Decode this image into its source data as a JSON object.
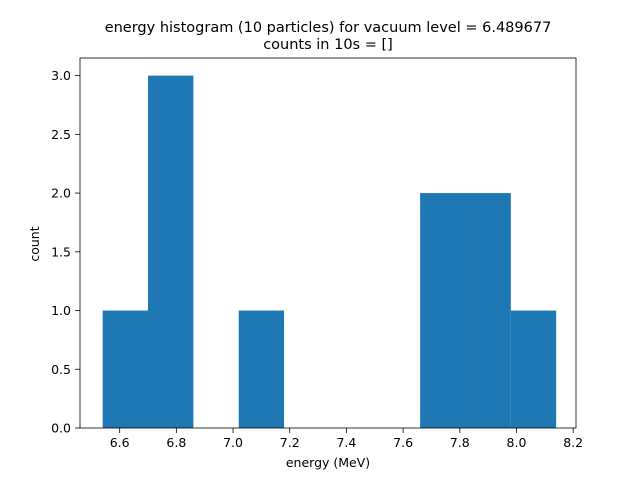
{
  "chart_data": {
    "type": "bar",
    "title": "energy histogram (10 particles) for vacuum level = 6.489677",
    "subtitle": "counts in 10s = []",
    "xlabel": "energy (MeV)",
    "ylabel": "count",
    "xlim": [
      6.46,
      8.21
    ],
    "ylim": [
      0,
      3.15
    ],
    "xticks": [
      "6.6",
      "6.8",
      "7.0",
      "7.2",
      "7.4",
      "7.6",
      "7.8",
      "8.0",
      "8.2"
    ],
    "yticks": [
      "0.0",
      "0.5",
      "1.0",
      "1.5",
      "2.0",
      "2.5",
      "3.0"
    ],
    "grid": false,
    "bar_color": "#1f77b4",
    "bins": [
      {
        "x0": 6.54,
        "x1": 6.7,
        "count": 1
      },
      {
        "x0": 6.7,
        "x1": 6.86,
        "count": 3
      },
      {
        "x0": 6.86,
        "x1": 7.02,
        "count": 0
      },
      {
        "x0": 7.02,
        "x1": 7.18,
        "count": 1
      },
      {
        "x0": 7.18,
        "x1": 7.34,
        "count": 0
      },
      {
        "x0": 7.34,
        "x1": 7.5,
        "count": 0
      },
      {
        "x0": 7.5,
        "x1": 7.66,
        "count": 0
      },
      {
        "x0": 7.66,
        "x1": 7.82,
        "count": 2
      },
      {
        "x0": 7.82,
        "x1": 7.98,
        "count": 2
      },
      {
        "x0": 7.98,
        "x1": 8.14,
        "count": 1
      }
    ]
  }
}
